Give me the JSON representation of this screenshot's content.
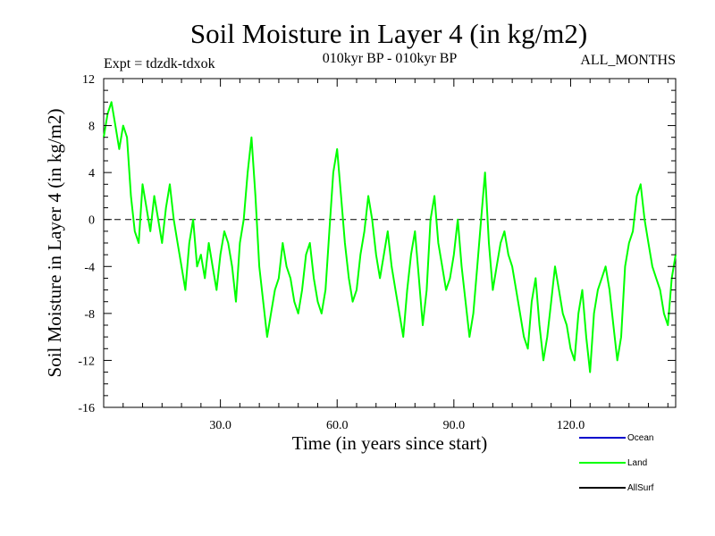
{
  "chart_data": {
    "type": "line",
    "title": "Soil Moisture in Layer 4 (in kg/m2)",
    "subtitle_left": "Expt = tdzdk-tdxok",
    "subtitle_center": "010kyr BP - 010kyr BP",
    "subtitle_right": "ALL_MONTHS",
    "xlabel": "Time (in years since start)",
    "ylabel": "Soil Moisture in Layer 4 (in kg/m2)",
    "xlim": [
      0,
      147
    ],
    "ylim": [
      -16,
      12
    ],
    "x_ticks": [
      30,
      60,
      90,
      120
    ],
    "x_tick_labels": [
      "30.0",
      "60.0",
      "90.0",
      "120.0"
    ],
    "y_ticks": [
      12,
      8,
      4,
      0,
      -4,
      -8,
      -12,
      -16
    ],
    "y_tick_labels": [
      "12",
      "8",
      "4",
      "0",
      "-4",
      "-8",
      "-12",
      "-16"
    ],
    "zero_line": true,
    "legend": [
      {
        "name": "Ocean",
        "color": "#0000cc"
      },
      {
        "name": "Land",
        "color": "#00ff00"
      },
      {
        "name": "AllSurf",
        "color": "#000000"
      }
    ],
    "series": [
      {
        "name": "Land",
        "color": "#00ff00",
        "x": [
          0,
          1,
          2,
          3,
          4,
          5,
          6,
          7,
          8,
          9,
          10,
          11,
          12,
          13,
          14,
          15,
          16,
          17,
          18,
          19,
          20,
          21,
          22,
          23,
          24,
          25,
          26,
          27,
          28,
          29,
          30,
          31,
          32,
          33,
          34,
          35,
          36,
          37,
          38,
          39,
          40,
          41,
          42,
          43,
          44,
          45,
          46,
          47,
          48,
          49,
          50,
          51,
          52,
          53,
          54,
          55,
          56,
          57,
          58,
          59,
          60,
          61,
          62,
          63,
          64,
          65,
          66,
          67,
          68,
          69,
          70,
          71,
          72,
          73,
          74,
          75,
          76,
          77,
          78,
          79,
          80,
          81,
          82,
          83,
          84,
          85,
          86,
          87,
          88,
          89,
          90,
          91,
          92,
          93,
          94,
          95,
          96,
          97,
          98,
          99,
          100,
          101,
          102,
          103,
          104,
          105,
          106,
          107,
          108,
          109,
          110,
          111,
          112,
          113,
          114,
          115,
          116,
          117,
          118,
          119,
          120,
          121,
          122,
          123,
          124,
          125,
          126,
          127,
          128,
          129,
          130,
          131,
          132,
          133,
          134,
          135,
          136,
          137,
          138,
          139,
          140,
          141,
          142,
          143,
          144,
          145,
          146,
          147
        ],
        "values": [
          7,
          9,
          10,
          8,
          6,
          8,
          7,
          2,
          -1,
          -2,
          3,
          1,
          -1,
          2,
          0,
          -2,
          1,
          3,
          0,
          -2,
          -4,
          -6,
          -2,
          0,
          -4,
          -3,
          -5,
          -2,
          -4,
          -6,
          -3,
          -1,
          -2,
          -4,
          -7,
          -2,
          0,
          4,
          7,
          2,
          -4,
          -7,
          -10,
          -8,
          -6,
          -5,
          -2,
          -4,
          -5,
          -7,
          -8,
          -6,
          -3,
          -2,
          -5,
          -7,
          -8,
          -6,
          -1,
          4,
          6,
          2,
          -2,
          -5,
          -7,
          -6,
          -3,
          -1,
          2,
          0,
          -3,
          -5,
          -3,
          -1,
          -4,
          -6,
          -8,
          -10,
          -6,
          -3,
          -1,
          -5,
          -9,
          -6,
          0,
          2,
          -2,
          -4,
          -6,
          -5,
          -3,
          0,
          -4,
          -7,
          -10,
          -8,
          -4,
          0,
          4,
          -2,
          -6,
          -4,
          -2,
          -1,
          -3,
          -4,
          -6,
          -8,
          -10,
          -11,
          -7,
          -5,
          -9,
          -12,
          -10,
          -7,
          -4,
          -6,
          -8,
          -9,
          -11,
          -12,
          -8,
          -6,
          -10,
          -13,
          -8,
          -6,
          -5,
          -4,
          -6,
          -9,
          -12,
          -10,
          -4,
          -2,
          -1,
          2,
          3,
          0,
          -2,
          -4,
          -5,
          -6,
          -8,
          -9,
          -5,
          -3
        ]
      }
    ]
  }
}
